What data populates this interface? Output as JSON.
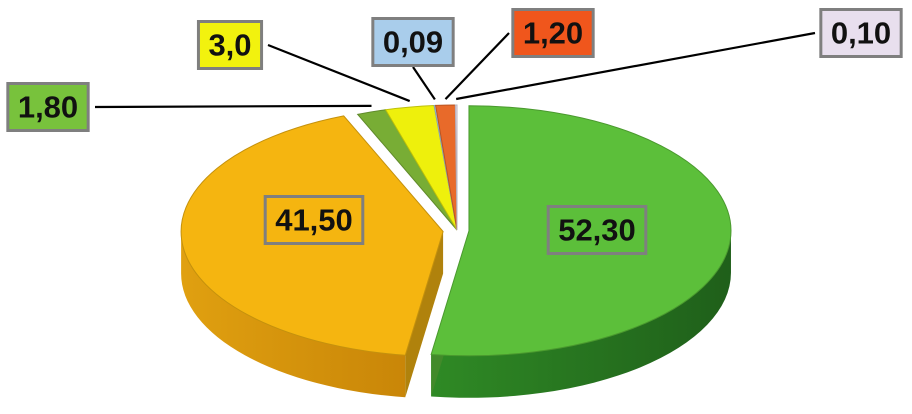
{
  "chart_data": {
    "type": "pie",
    "style": "3d-exploded",
    "title": "",
    "legend": "none",
    "slices": [
      {
        "label": "52,30",
        "value": 52.3,
        "color": "#5cbf3a",
        "label_fill": "#5cbf3a"
      },
      {
        "label": "41,50",
        "value": 41.5,
        "color": "#f5b510",
        "label_fill": "#f5b510"
      },
      {
        "label": "1,80",
        "value": 1.8,
        "color": "#78ad35",
        "label_fill": "#78c23c"
      },
      {
        "label": "3,0",
        "value": 3.0,
        "color": "#eef00c",
        "label_fill": "#f2f20e"
      },
      {
        "label": "0,09",
        "value": 0.09,
        "color": "#a8cdea",
        "label_fill": "#a9cdeb"
      },
      {
        "label": "1,20",
        "value": 1.2,
        "color": "#e86a2a",
        "label_fill": "#f0561c"
      },
      {
        "label": "0,10",
        "value": 0.1,
        "color": "#e6dcea",
        "label_fill": "#e8dfee"
      }
    ]
  }
}
